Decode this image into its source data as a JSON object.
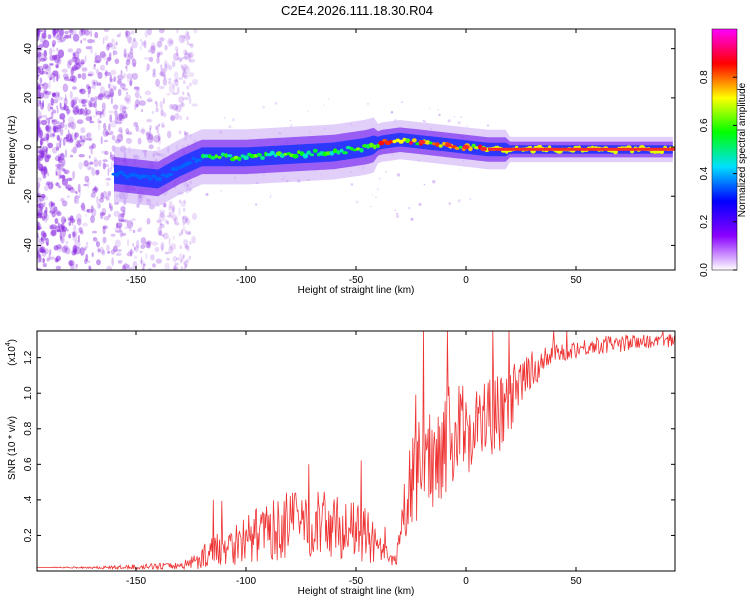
{
  "title": "C2E4.2026.111.18.30.R04",
  "colors": {
    "snr_line": "#ee3333",
    "ridge_core": "#ff2a2a",
    "noise": "#8a2be2"
  },
  "chart_data": [
    {
      "type": "heatmap",
      "name": "spectrogram",
      "xlabel": "Height of straight line (km)",
      "ylabel": "Frequency (Hz)",
      "xlim": [
        -195,
        95
      ],
      "ylim": [
        -50,
        48
      ],
      "xticks": [
        -150,
        -100,
        -50,
        0,
        50
      ],
      "yticks": [
        -40,
        -20,
        0,
        20,
        40
      ],
      "ridge": {
        "x": [
          -160,
          -150,
          -140,
          -130,
          -120,
          -100,
          -80,
          -60,
          -45,
          -38,
          -30,
          -20,
          -10,
          0,
          10,
          20,
          40,
          60,
          80,
          95
        ],
        "y": [
          -11,
          -12,
          -13,
          -8,
          -4,
          -4,
          -3,
          -2,
          0,
          2,
          3,
          2,
          1,
          0,
          -1,
          -1,
          -1,
          -1,
          -1,
          -1
        ]
      },
      "colorbar": {
        "label": "Normalized spectral amplitude",
        "range": [
          0,
          1
        ],
        "ticks": [
          0.0,
          0.2,
          0.4,
          0.6,
          0.8
        ],
        "tick_labels": [
          "0.0",
          "0.2",
          "0.4",
          "0.6",
          "0.8"
        ],
        "colormap": [
          "#ffffff",
          "#8a00ff",
          "#0000ff",
          "#00e0ff",
          "#00ff00",
          "#ffff00",
          "#ff0000",
          "#ff00ff"
        ]
      }
    },
    {
      "type": "line",
      "name": "snr",
      "xlabel": "Height of straight line (km)",
      "ylabel": "SNR (10 * v/v)",
      "scale_label": "(x10",
      "scale_exp": "4",
      "xlim": [
        -195,
        95
      ],
      "ylim": [
        0,
        1.35
      ],
      "xticks": [
        -150,
        -100,
        -50,
        0,
        50
      ],
      "yticks": [
        0.2,
        0.4,
        0.6,
        0.8,
        1.0,
        1.2
      ],
      "ytick_labels": [
        "0.2",
        ".4",
        "0.6",
        "0.8",
        "1.0",
        "1.2"
      ],
      "x": [
        -195,
        -160,
        -130,
        -122,
        -115,
        -108,
        -100,
        -95,
        -90,
        -85,
        -80,
        -75,
        -70,
        -65,
        -60,
        -55,
        -50,
        -45,
        -40,
        -35,
        -32,
        -30,
        -28,
        -25,
        -22,
        -20,
        -15,
        -10,
        -5,
        0,
        5,
        10,
        15,
        20,
        25,
        30,
        35,
        40,
        50,
        60,
        70,
        80,
        95
      ],
      "y": [
        0.02,
        0.02,
        0.03,
        0.06,
        0.12,
        0.15,
        0.18,
        0.2,
        0.22,
        0.24,
        0.26,
        0.28,
        0.27,
        0.26,
        0.25,
        0.24,
        0.22,
        0.2,
        0.12,
        0.06,
        0.05,
        0.15,
        0.35,
        0.48,
        0.55,
        0.6,
        0.65,
        0.72,
        0.78,
        0.8,
        0.82,
        0.85,
        0.88,
        0.95,
        1.05,
        1.12,
        1.18,
        1.22,
        1.25,
        1.27,
        1.28,
        1.29,
        1.3
      ],
      "spread": [
        0.0,
        0.01,
        0.02,
        0.05,
        0.09,
        0.12,
        0.14,
        0.15,
        0.16,
        0.18,
        0.2,
        0.2,
        0.2,
        0.19,
        0.18,
        0.17,
        0.16,
        0.15,
        0.1,
        0.04,
        0.05,
        0.1,
        0.2,
        0.25,
        0.28,
        0.3,
        0.3,
        0.3,
        0.28,
        0.26,
        0.25,
        0.24,
        0.22,
        0.2,
        0.14,
        0.1,
        0.08,
        0.06,
        0.05,
        0.05,
        0.05,
        0.04,
        0.04
      ]
    }
  ]
}
